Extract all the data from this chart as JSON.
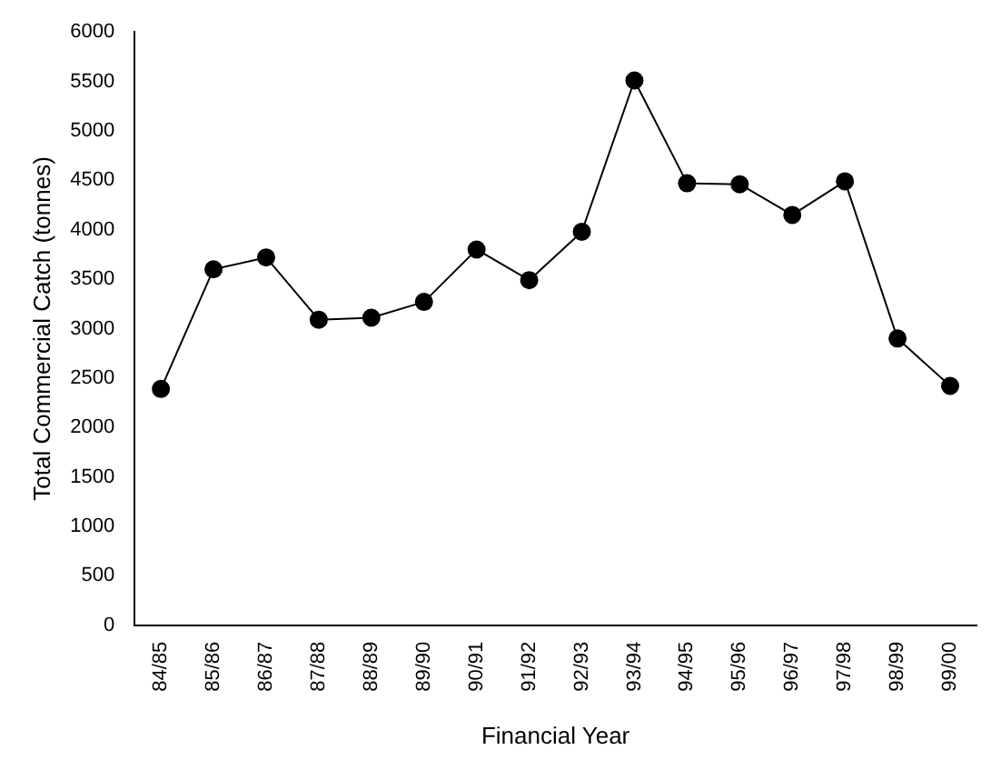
{
  "chart_data": {
    "type": "line",
    "xlabel": "Financial Year",
    "ylabel": "Total Commercial Catch (tonnes)",
    "categories": [
      "84/85",
      "85/86",
      "86/87",
      "87/88",
      "88/89",
      "89/90",
      "90/91",
      "91/92",
      "92/93",
      "93/94",
      "94/95",
      "95/96",
      "96/97",
      "97/98",
      "98/99",
      "99/00"
    ],
    "series": [
      {
        "color": "#000000",
        "values": [
          2390,
          3600,
          3720,
          3090,
          3110,
          3270,
          3800,
          3490,
          3980,
          5510,
          4470,
          4460,
          4150,
          4490,
          2900,
          2420
        ]
      }
    ],
    "ylim": [
      0,
      6000
    ],
    "yticks": [
      0,
      500,
      1000,
      1500,
      2000,
      2500,
      3000,
      3500,
      4000,
      4500,
      5000,
      5500,
      6000
    ],
    "grid": false,
    "legend": false,
    "marker": "circle",
    "line_style": "solid"
  }
}
